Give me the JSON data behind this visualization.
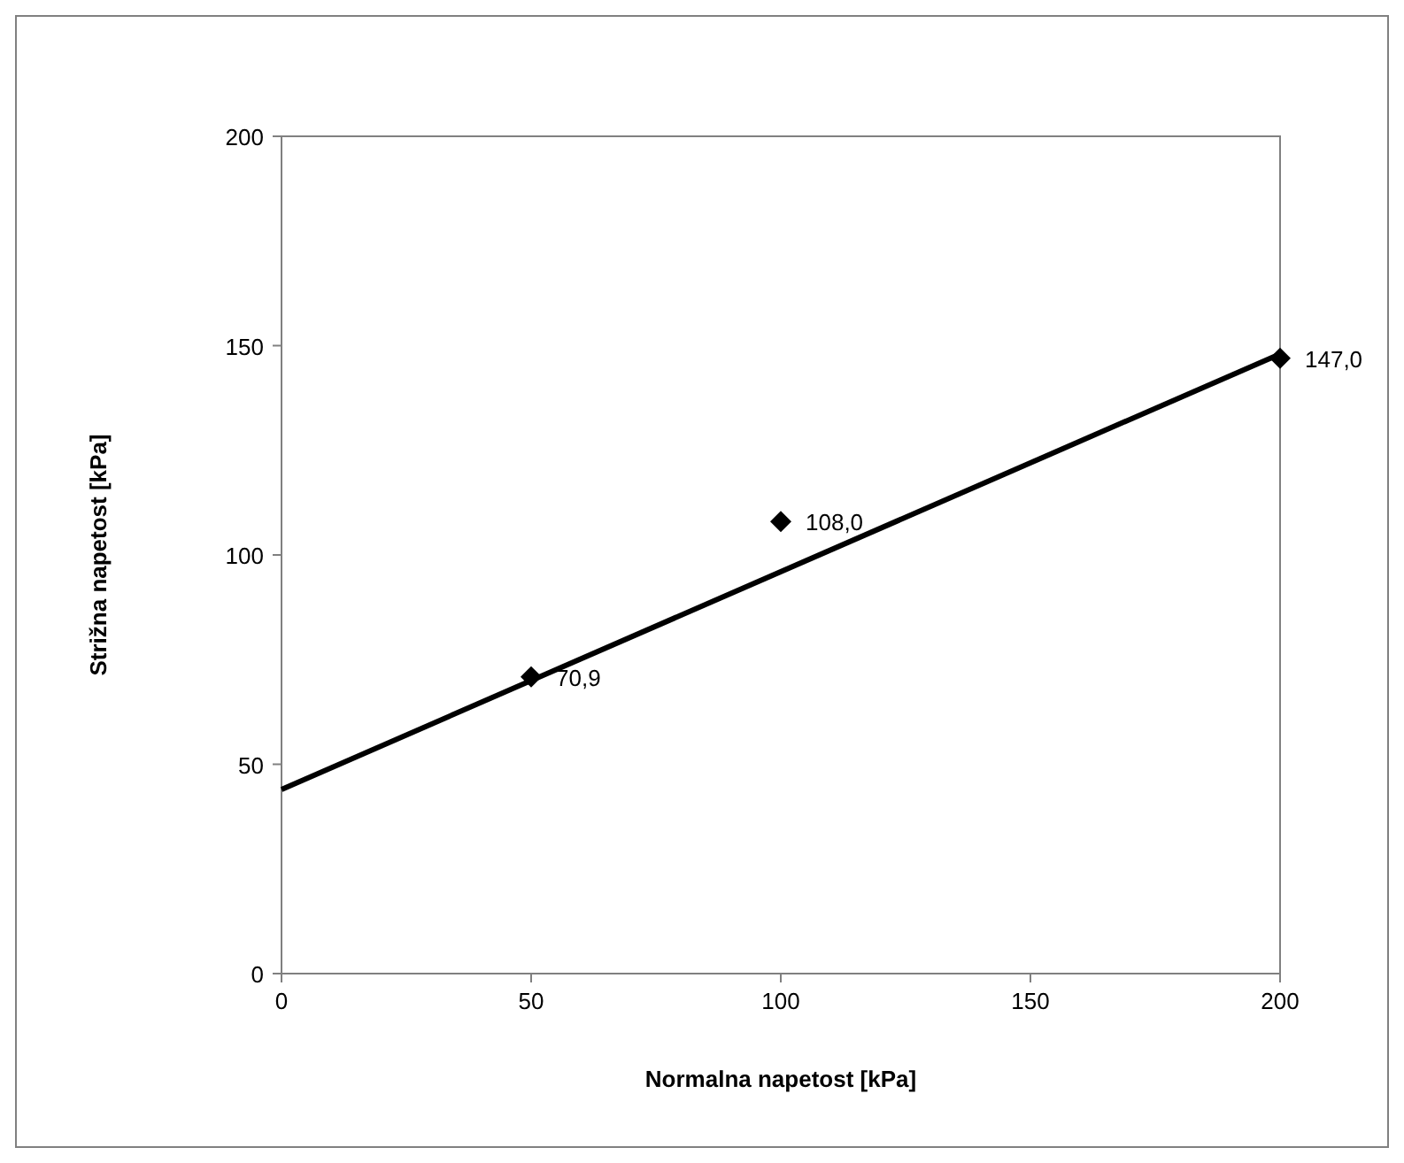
{
  "chart_data": {
    "type": "scatter",
    "xlabel": "Normalna napetost [kPa]",
    "ylabel": "Strižna napetost [kPa]",
    "xlim": [
      0,
      200
    ],
    "xticks": [
      0,
      50,
      100,
      150,
      200
    ],
    "ylim": [
      0,
      200
    ],
    "yticks": [
      0,
      50,
      100,
      150,
      200
    ],
    "series": [
      {
        "type": "line",
        "x": [
          0,
          200
        ],
        "values": [
          44,
          148
        ],
        "color": "#000000",
        "marker": "none",
        "line_style": "solid"
      },
      {
        "x": [
          50,
          100,
          200
        ],
        "values": [
          70.9,
          108.0,
          147.0
        ],
        "color": "#000000",
        "marker": "diamond",
        "value_labels": [
          "70,9",
          "108,0",
          "147,0"
        ]
      }
    ]
  }
}
